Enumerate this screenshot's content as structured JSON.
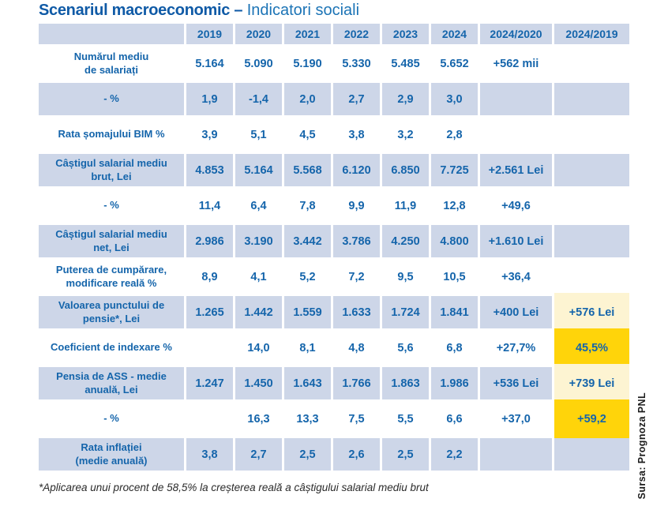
{
  "title": {
    "bold": "Scenariul macroeconomic –",
    "regular": "Indicatori sociali"
  },
  "chart_data": {
    "type": "table",
    "title": "Scenariul macroeconomic – Indicatori sociali",
    "columns": [
      "",
      "2019",
      "2020",
      "2021",
      "2022",
      "2023",
      "2024",
      "2024/2020",
      "2024/2019"
    ],
    "rows": [
      {
        "label": "Numărul mediu\nde salariați",
        "values": [
          "5.164",
          "5.090",
          "5.190",
          "5.330",
          "5.485",
          "5.652",
          "+562 mii",
          ""
        ],
        "shaded": false,
        "highlight": null
      },
      {
        "label": "- %",
        "values": [
          "1,9",
          "-1,4",
          "2,0",
          "2,7",
          "2,9",
          "3,0",
          "",
          ""
        ],
        "shaded": true,
        "highlight": null
      },
      {
        "label": "Rata șomajului BIM %",
        "values": [
          "3,9",
          "5,1",
          "4,5",
          "3,8",
          "3,2",
          "2,8",
          "",
          ""
        ],
        "shaded": false,
        "highlight": null
      },
      {
        "label": "Câștigul salarial mediu\nbrut, Lei",
        "values": [
          "4.853",
          "5.164",
          "5.568",
          "6.120",
          "6.850",
          "7.725",
          "+2.561 Lei",
          ""
        ],
        "shaded": true,
        "highlight": null
      },
      {
        "label": "- %",
        "values": [
          "11,4",
          "6,4",
          "7,8",
          "9,9",
          "11,9",
          "12,8",
          "+49,6",
          ""
        ],
        "shaded": false,
        "highlight": null
      },
      {
        "label": "Câștigul salarial mediu\nnet, Lei",
        "values": [
          "2.986",
          "3.190",
          "3.442",
          "3.786",
          "4.250",
          "4.800",
          "+1.610 Lei",
          ""
        ],
        "shaded": true,
        "highlight": null
      },
      {
        "label": "Puterea de cumpărare,\nmodificare reală %",
        "values": [
          "8,9",
          "4,1",
          "5,2",
          "7,2",
          "9,5",
          "10,5",
          "+36,4",
          ""
        ],
        "shaded": false,
        "highlight": null
      },
      {
        "label": "Valoarea punctului de\npensie*, Lei",
        "values": [
          "1.265",
          "1.442",
          "1.559",
          "1.633",
          "1.724",
          "1.841",
          "+400 Lei",
          "+576 Lei"
        ],
        "shaded": true,
        "highlight": "cream"
      },
      {
        "label": "Coeficient de indexare %",
        "values": [
          "",
          "14,0",
          "8,1",
          "4,8",
          "5,6",
          "6,8",
          "+27,7%",
          "45,5%"
        ],
        "shaded": false,
        "highlight": "yellow"
      },
      {
        "label": "Pensia de ASS - medie\nanuală, Lei",
        "values": [
          "1.247",
          "1.450",
          "1.643",
          "1.766",
          "1.863",
          "1.986",
          "+536 Lei",
          "+739 Lei"
        ],
        "shaded": true,
        "highlight": "cream"
      },
      {
        "label": "- %",
        "values": [
          "",
          "16,3",
          "13,3",
          "7,5",
          "5,5",
          "6,6",
          "+37,0",
          "+59,2"
        ],
        "shaded": false,
        "highlight": "yellow"
      },
      {
        "label": "Rata inflației\n(medie anuală)",
        "values": [
          "3,8",
          "2,7",
          "2,5",
          "2,6",
          "2,5",
          "2,2",
          "",
          ""
        ],
        "shaded": true,
        "highlight": null
      }
    ]
  },
  "footnote": "*Aplicarea unui procent de 58,5% la creșterea reală a câștigului salarial mediu brut",
  "source": "Sursa: Prognoza PNL",
  "colors": {
    "table_blue_text": "#1565ab",
    "row_shade": "#cdd6e8",
    "highlight_cream": "#fdf4d2",
    "highlight_yellow": "#ffd40a",
    "title_dark": "#0f5aa6",
    "title_light": "#1c74b6"
  }
}
